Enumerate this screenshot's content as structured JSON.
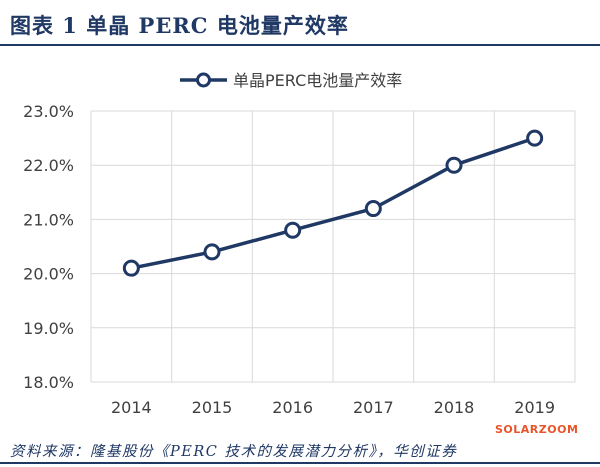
{
  "figure": {
    "title": "图表 1   单晶 PERC 电池量产效率",
    "source": "资料来源：隆基股份《PERC 技术的发展潜力分析》，华创证券",
    "watermark": "SOLARZOOM"
  },
  "colors": {
    "series": "#1f3864",
    "grid": "#d9d9d9",
    "axis_text": "#404040"
  },
  "chart_data": {
    "type": "line",
    "categories": [
      "2014",
      "2015",
      "2016",
      "2017",
      "2018",
      "2019"
    ],
    "series": [
      {
        "name": "单晶PERC电池量产效率",
        "values": [
          20.1,
          20.4,
          20.8,
          21.2,
          22.0,
          22.5
        ]
      }
    ],
    "ylim": [
      18.0,
      23.0
    ],
    "yticks": [
      "18.0%",
      "19.0%",
      "20.0%",
      "21.0%",
      "22.0%",
      "23.0%"
    ],
    "grid": true,
    "legend": "top-center"
  }
}
